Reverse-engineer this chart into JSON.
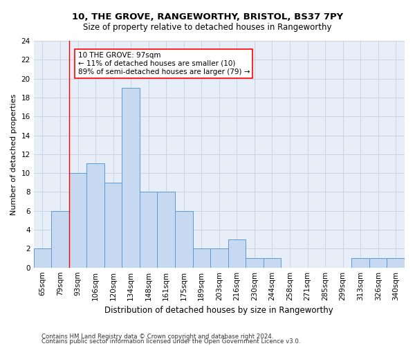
{
  "title1": "10, THE GROVE, RANGEWORTHY, BRISTOL, BS37 7PY",
  "title2": "Size of property relative to detached houses in Rangeworthy",
  "xlabel": "Distribution of detached houses by size in Rangeworthy",
  "ylabel": "Number of detached properties",
  "bar_labels": [
    "65sqm",
    "79sqm",
    "93sqm",
    "106sqm",
    "120sqm",
    "134sqm",
    "148sqm",
    "161sqm",
    "175sqm",
    "189sqm",
    "203sqm",
    "216sqm",
    "230sqm",
    "244sqm",
    "258sqm",
    "271sqm",
    "285sqm",
    "299sqm",
    "313sqm",
    "326sqm",
    "340sqm"
  ],
  "bar_values": [
    2,
    6,
    10,
    11,
    9,
    19,
    8,
    8,
    6,
    2,
    2,
    3,
    1,
    1,
    0,
    0,
    0,
    0,
    1,
    1,
    1
  ],
  "bar_color": "#c6d9f0",
  "bar_edge_color": "#5b9bd5",
  "annotation_text": "10 THE GROVE: 97sqm\n← 11% of detached houses are smaller (10)\n89% of semi-detached houses are larger (79) →",
  "vline_x_index": 1.5,
  "annotation_box_color": "white",
  "annotation_box_edge": "red",
  "vline_color": "red",
  "grid_color": "#c8d4e8",
  "background_color": "#e8eef8",
  "ylim": [
    0,
    24
  ],
  "yticks": [
    0,
    2,
    4,
    6,
    8,
    10,
    12,
    14,
    16,
    18,
    20,
    22,
    24
  ],
  "footer1": "Contains HM Land Registry data © Crown copyright and database right 2024.",
  "footer2": "Contains public sector information licensed under the Open Government Licence v3.0.",
  "title1_fontsize": 9.5,
  "title2_fontsize": 8.5,
  "xlabel_fontsize": 8.5,
  "ylabel_fontsize": 8.0,
  "tick_fontsize": 7.5,
  "footer_fontsize": 6.2
}
